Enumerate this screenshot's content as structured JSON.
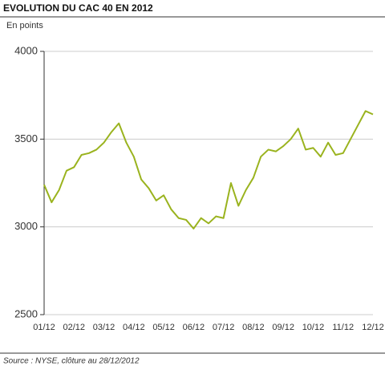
{
  "chart_data": {
    "type": "line",
    "title": "EVOLUTION DU CAC 40 EN 2012",
    "subtitle": "En points",
    "source": "Source : NYSE, clôture au 28/12/2012",
    "categories": [
      "01/12",
      null,
      null,
      null,
      "02/12",
      null,
      null,
      null,
      "03/12",
      null,
      null,
      null,
      "04/12",
      null,
      null,
      null,
      "05/12",
      null,
      null,
      null,
      "06/12",
      null,
      null,
      null,
      "07/12",
      null,
      null,
      null,
      "08/12",
      null,
      null,
      null,
      "09/12",
      null,
      null,
      null,
      "10/12",
      null,
      null,
      null,
      "11/12",
      null,
      null,
      null,
      "12/12"
    ],
    "series": [
      {
        "name": "CAC 40",
        "color": "#9ab31e",
        "values": [
          3240,
          3140,
          3210,
          3320,
          3340,
          3410,
          3420,
          3440,
          3480,
          3540,
          3590,
          3480,
          3400,
          3270,
          3220,
          3150,
          3180,
          3100,
          3050,
          3040,
          2990,
          3050,
          3020,
          3060,
          3050,
          3250,
          3120,
          3210,
          3280,
          3400,
          3440,
          3430,
          3460,
          3500,
          3560,
          3440,
          3450,
          3400,
          3480,
          3410,
          3420,
          3500,
          3580,
          3660,
          3641
        ]
      }
    ],
    "ylim": [
      2500,
      4000
    ],
    "yticks": [
      2500,
      3000,
      3500,
      4000
    ],
    "grid": true
  }
}
